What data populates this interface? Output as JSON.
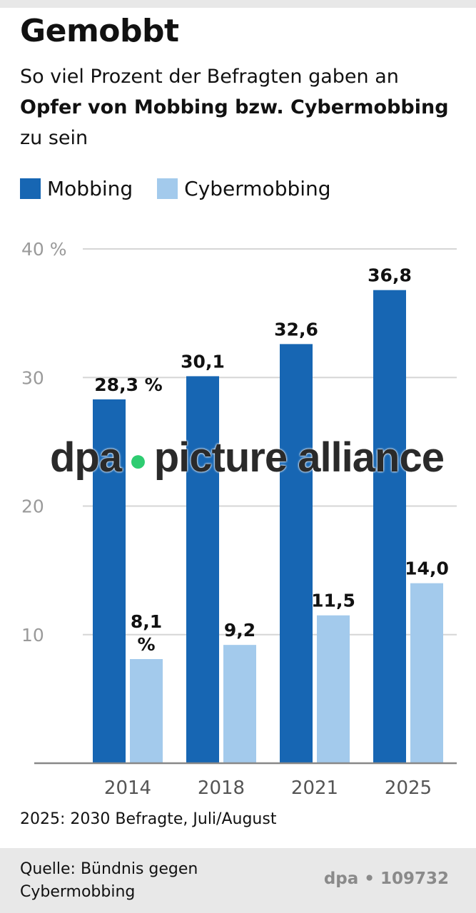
{
  "title": "Gemobbt",
  "subtitle": {
    "line1": "So viel Prozent der Befragten gaben an",
    "bold": "Opfer von Mobbing bzw. Cybermobbing",
    "tail": " zu sein"
  },
  "colors": {
    "mobbing": "#1766b3",
    "cybermobbing": "#a3caec",
    "grid": "#d6d6d6",
    "axis": "#888888",
    "tick": "#9a9a9a"
  },
  "chart_data": {
    "type": "bar",
    "categories": [
      "2014",
      "2018",
      "2021",
      "2025"
    ],
    "series": [
      {
        "name": "Mobbing",
        "values": [
          28.3,
          30.1,
          32.6,
          36.8
        ],
        "labels": [
          "28,3 %",
          "30,1",
          "32,6",
          "36,8"
        ]
      },
      {
        "name": "Cybermobbing",
        "values": [
          8.1,
          9.2,
          11.5,
          14.0
        ],
        "labels": [
          "8,1 %",
          "9,2",
          "11,5",
          "14,0"
        ]
      }
    ],
    "yticks": [
      {
        "value": 10,
        "label": "10"
      },
      {
        "value": 20,
        "label": "20"
      },
      {
        "value": 30,
        "label": "30"
      },
      {
        "value": 40,
        "label": "40 %"
      }
    ],
    "ylim": [
      0,
      40
    ],
    "grid": true,
    "legend": "top-left"
  },
  "note": "2025: 2030 Befragte, Juli/August",
  "footer": {
    "source": "Quelle: Bündnis gegen Cybermobbing",
    "credit": "dpa • 109732"
  },
  "watermark": {
    "left": "dpa",
    "dot": "●",
    "right": "picture alliance"
  }
}
